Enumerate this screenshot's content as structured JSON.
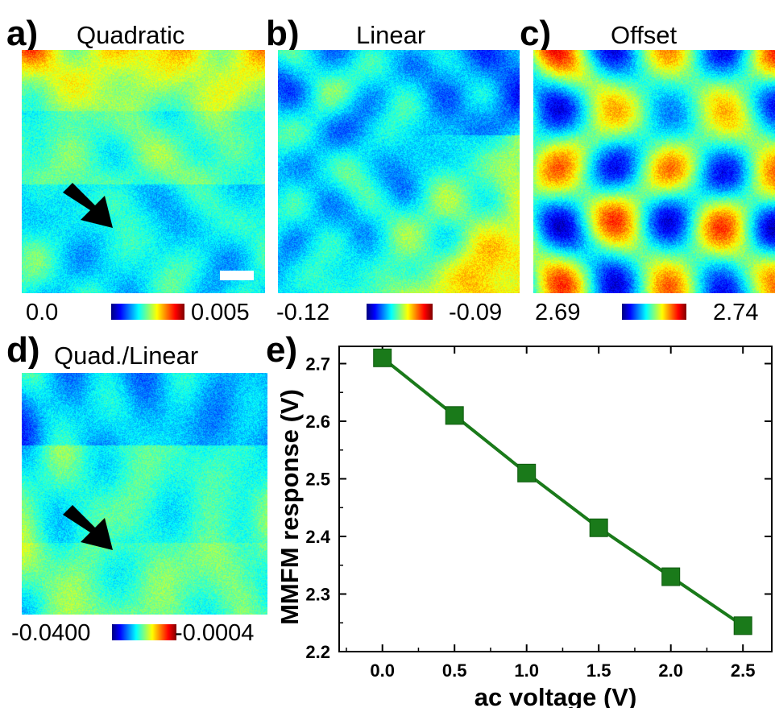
{
  "panels": {
    "a": {
      "letter": "a)",
      "title": "Quadratic",
      "cmin": "0.0",
      "cmax": "0.005"
    },
    "b": {
      "letter": "b)",
      "title": "Linear",
      "cmin": "-0.12",
      "cmax": "-0.09"
    },
    "c": {
      "letter": "c)",
      "title": "Offset",
      "cmin": "2.69",
      "cmax": "2.74"
    },
    "d": {
      "letter": "d)",
      "title": "Quad./Linear",
      "cmin": "-0.0400",
      "cmax": "-0.0004"
    },
    "e": {
      "letter": "e)"
    }
  },
  "colormap": [
    "#00007f",
    "#0000ff",
    "#007fff",
    "#00ffff",
    "#7fff7f",
    "#ffff00",
    "#ff7f00",
    "#ff0000",
    "#7f0000"
  ],
  "chart_data": {
    "type": "line",
    "title": "",
    "xlabel": "ac voltage (V)",
    "ylabel": "MMFM response (V)",
    "xlim": [
      -0.3,
      2.7
    ],
    "ylim": [
      2.2,
      2.73
    ],
    "xticks": [
      "0.0",
      "0.5",
      "1.0",
      "1.5",
      "2.0",
      "2.5"
    ],
    "yticks": [
      "2.2",
      "2.3",
      "2.4",
      "2.5",
      "2.6",
      "2.7"
    ],
    "series": [
      {
        "x": [
          0.0,
          0.5,
          1.0,
          1.5,
          2.0,
          2.5
        ],
        "y": [
          2.71,
          2.61,
          2.51,
          2.415,
          2.33,
          2.245
        ],
        "color": "#1a7a1a",
        "marker": "square"
      }
    ],
    "grid": false
  }
}
